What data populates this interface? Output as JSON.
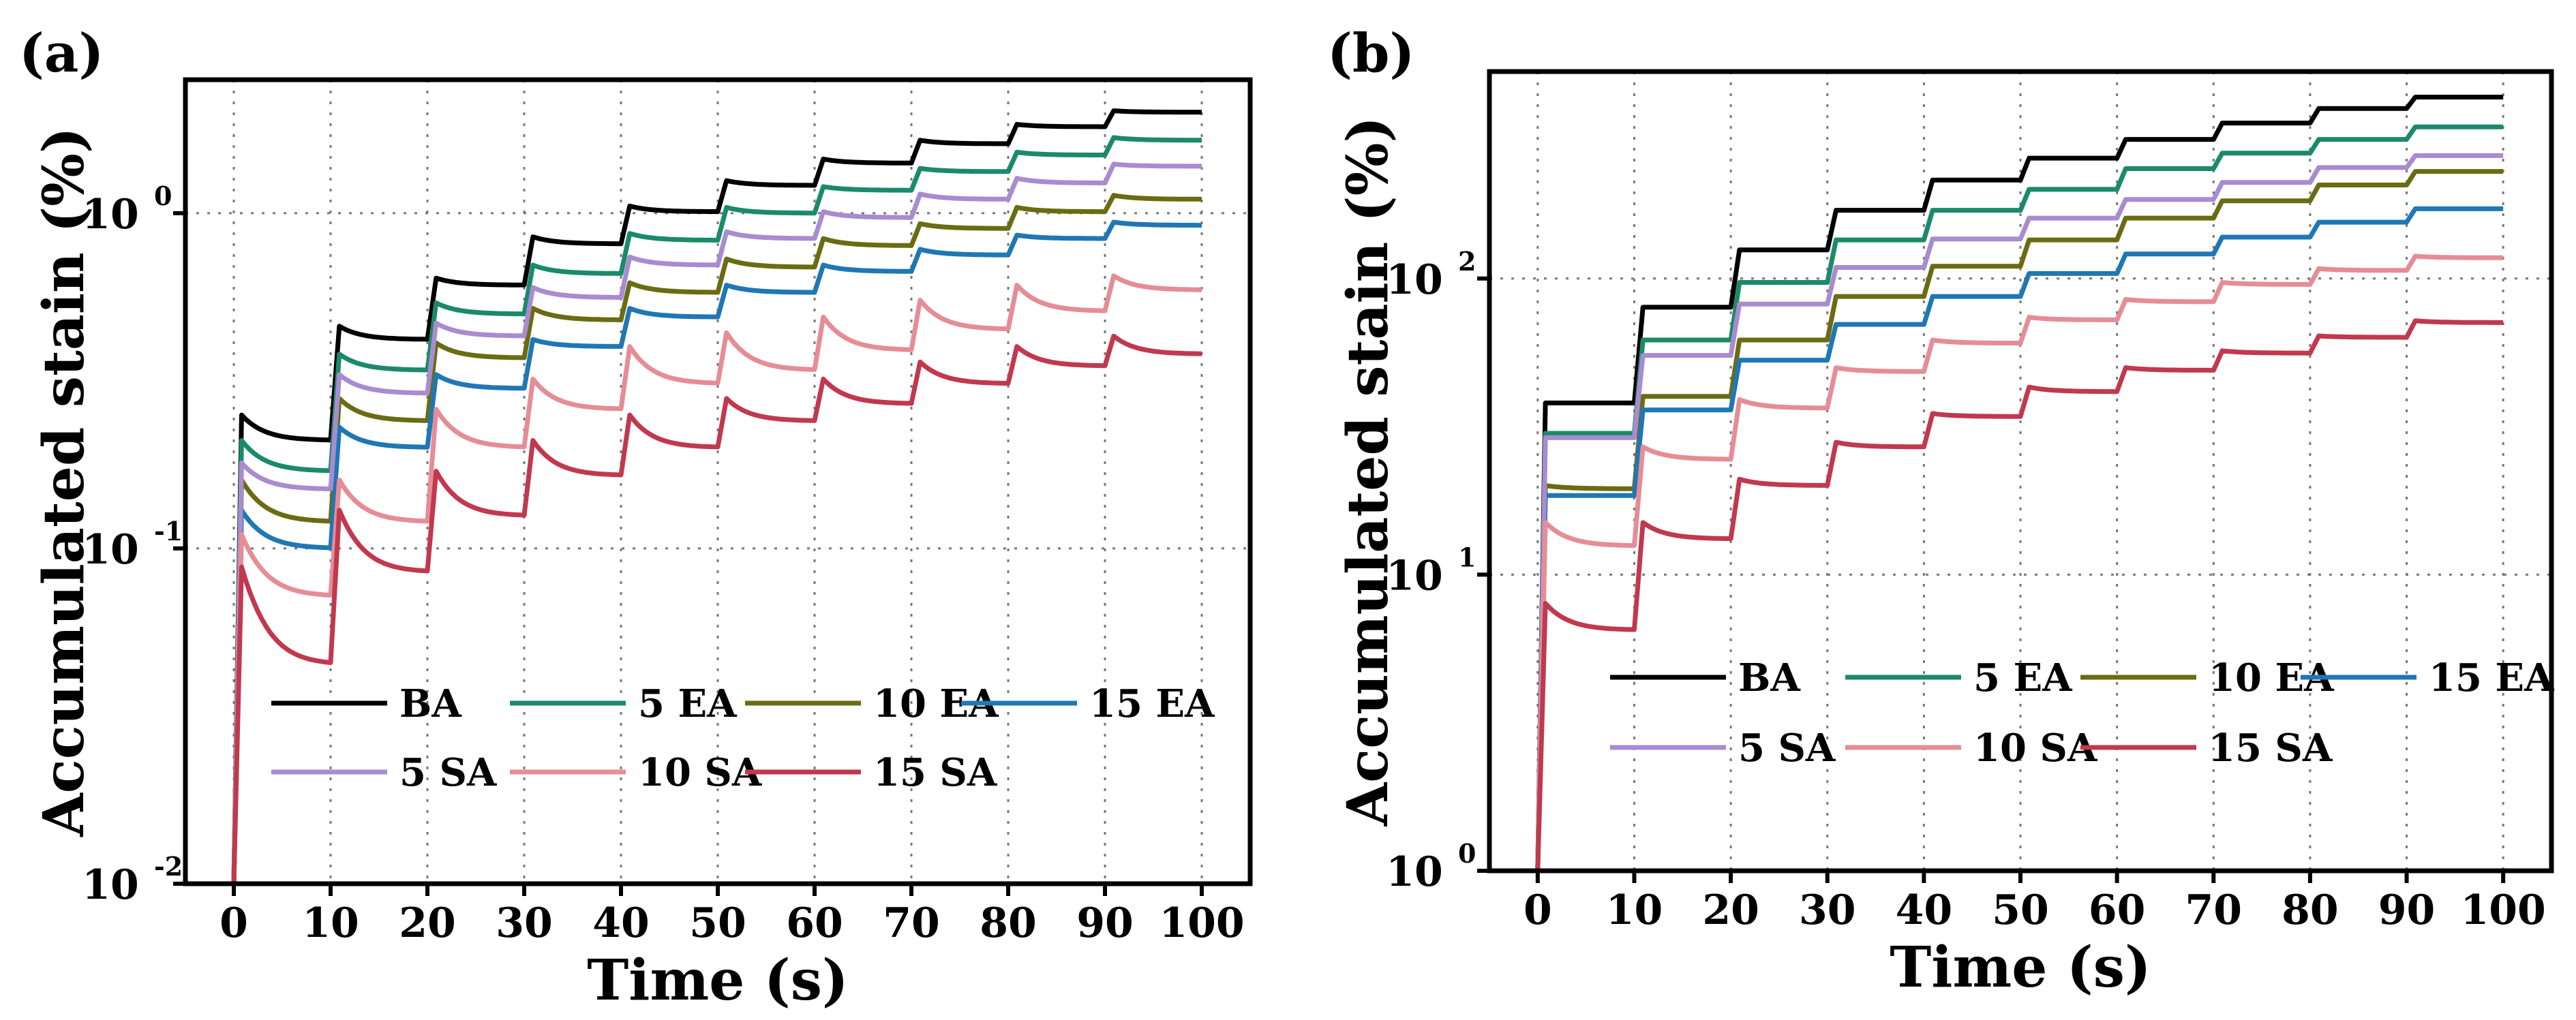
{
  "chart_data": [
    {
      "panel": "(a)",
      "type": "line",
      "xlabel": "Time (s)",
      "ylabel": "Accumulated stain (%)",
      "yscale": "log",
      "xlim": [
        -5,
        105
      ],
      "ylim": [
        0.01,
        2.5
      ],
      "xticks": [
        0,
        10,
        20,
        30,
        40,
        50,
        60,
        70,
        80,
        90,
        100
      ],
      "yticks": [
        {
          "base": "10",
          "exp": "-2",
          "value": 0.01
        },
        {
          "base": "10",
          "exp": "-1",
          "value": 0.1
        },
        {
          "base": "10",
          "exp": "0",
          "value": 1
        }
      ],
      "grid": true,
      "legend": {
        "position": "lower-middle",
        "rows": [
          [
            "BA",
            "5 EA",
            "10 EA",
            "15 EA"
          ],
          [
            "5 SA",
            "10 SA",
            "15 SA"
          ]
        ]
      },
      "series": [
        {
          "name": "BA",
          "color": "#000000",
          "start": [
            0.25,
            0.21
          ],
          "steps": [
            [
              0.46,
              0.42
            ],
            [
              0.64,
              0.61
            ],
            [
              0.85,
              0.81
            ],
            [
              1.05,
              1.01
            ],
            [
              1.25,
              1.21
            ],
            [
              1.45,
              1.41
            ],
            [
              1.65,
              1.61
            ],
            [
              1.84,
              1.81
            ],
            [
              2.02,
              2.0
            ]
          ]
        },
        {
          "name": "5 EA",
          "color": "#1b8a6b",
          "start": [
            0.21,
            0.17
          ],
          "steps": [
            [
              0.38,
              0.34
            ],
            [
              0.54,
              0.5
            ],
            [
              0.7,
              0.66
            ],
            [
              0.87,
              0.83
            ],
            [
              1.04,
              1.0
            ],
            [
              1.2,
              1.17
            ],
            [
              1.36,
              1.33
            ],
            [
              1.52,
              1.49
            ],
            [
              1.68,
              1.65
            ]
          ]
        },
        {
          "name": "10 EA",
          "color": "#6b6b12",
          "start": [
            0.16,
            0.12
          ],
          "steps": [
            [
              0.28,
              0.24
            ],
            [
              0.41,
              0.37
            ],
            [
              0.52,
              0.48
            ],
            [
              0.62,
              0.58
            ],
            [
              0.73,
              0.69
            ],
            [
              0.84,
              0.8
            ],
            [
              0.93,
              0.9
            ],
            [
              1.04,
              1.01
            ],
            [
              1.13,
              1.1
            ]
          ]
        },
        {
          "name": "15 EA",
          "color": "#1f77b4",
          "start": [
            0.13,
            0.1
          ],
          "steps": [
            [
              0.23,
              0.2
            ],
            [
              0.33,
              0.3
            ],
            [
              0.42,
              0.4
            ],
            [
              0.52,
              0.49
            ],
            [
              0.61,
              0.58
            ],
            [
              0.7,
              0.67
            ],
            [
              0.78,
              0.75
            ],
            [
              0.86,
              0.84
            ],
            [
              0.94,
              0.92
            ]
          ]
        },
        {
          "name": "5 SA",
          "color": "#a98bd0",
          "start": [
            0.18,
            0.15
          ],
          "steps": [
            [
              0.33,
              0.29
            ],
            [
              0.47,
              0.43
            ],
            [
              0.6,
              0.56
            ],
            [
              0.74,
              0.7
            ],
            [
              0.88,
              0.84
            ],
            [
              1.01,
              0.97
            ],
            [
              1.14,
              1.1
            ],
            [
              1.27,
              1.23
            ],
            [
              1.4,
              1.38
            ]
          ]
        },
        {
          "name": "10 SA",
          "color": "#e58d96",
          "start": [
            0.11,
            0.072
          ],
          "steps": [
            [
              0.16,
              0.12
            ],
            [
              0.26,
              0.2
            ],
            [
              0.32,
              0.26
            ],
            [
              0.4,
              0.31
            ],
            [
              0.44,
              0.34
            ],
            [
              0.49,
              0.39
            ],
            [
              0.55,
              0.45
            ],
            [
              0.61,
              0.51
            ],
            [
              0.65,
              0.59
            ]
          ]
        },
        {
          "name": "15 SA",
          "color": "#c0394f",
          "start": [
            0.088,
            0.045
          ],
          "steps": [
            [
              0.13,
              0.085
            ],
            [
              0.17,
              0.125
            ],
            [
              0.21,
              0.165
            ],
            [
              0.25,
              0.2
            ],
            [
              0.28,
              0.24
            ],
            [
              0.32,
              0.27
            ],
            [
              0.36,
              0.31
            ],
            [
              0.4,
              0.35
            ],
            [
              0.43,
              0.38
            ]
          ]
        }
      ]
    },
    {
      "panel": "(b)",
      "type": "line",
      "xlabel": "Time (s)",
      "ylabel": "Accumulated stain (%)",
      "yscale": "log",
      "xlim": [
        -5,
        105
      ],
      "ylim": [
        1,
        500
      ],
      "xticks": [
        0,
        10,
        20,
        30,
        40,
        50,
        60,
        70,
        80,
        90,
        100
      ],
      "yticks": [
        {
          "base": "10",
          "exp": "0",
          "value": 1
        },
        {
          "base": "10",
          "exp": "1",
          "value": 10
        },
        {
          "base": "10",
          "exp": "2",
          "value": 100
        }
      ],
      "grid": true,
      "legend": {
        "position": "lower-middle",
        "rows": [
          [
            "BA",
            "5 EA",
            "10 EA",
            "15 EA"
          ],
          [
            "5 SA",
            "10 SA",
            "15 SA"
          ]
        ]
      },
      "series": [
        {
          "name": "BA",
          "color": "#000000",
          "start": [
            38,
            38
          ],
          "steps": [
            [
              80,
              80
            ],
            [
              125,
              125
            ],
            [
              170,
              170
            ],
            [
              215,
              215
            ],
            [
              255,
              255
            ],
            [
              295,
              295
            ],
            [
              335,
              335
            ],
            [
              375,
              375
            ],
            [
              410,
              410
            ]
          ]
        },
        {
          "name": "5 EA",
          "color": "#1b8a6b",
          "start": [
            30,
            30
          ],
          "steps": [
            [
              62,
              62
            ],
            [
              97,
              97
            ],
            [
              135,
              135
            ],
            [
              170,
              170
            ],
            [
              200,
              200
            ],
            [
              235,
              235
            ],
            [
              265,
              265
            ],
            [
              295,
              295
            ],
            [
              325,
              325
            ]
          ]
        },
        {
          "name": "10 EA",
          "color": "#6b6b12",
          "start": [
            20,
            19.5
          ],
          "steps": [
            [
              40,
              40
            ],
            [
              62,
              62
            ],
            [
              87,
              87
            ],
            [
              110,
              110
            ],
            [
              135,
              135
            ],
            [
              160,
              160
            ],
            [
              183,
              183
            ],
            [
              207,
              207
            ],
            [
              230,
              230
            ]
          ]
        },
        {
          "name": "15 EA",
          "color": "#1f77b4",
          "start": [
            18.5,
            18.5
          ],
          "steps": [
            [
              36,
              36
            ],
            [
              53,
              53
            ],
            [
              70,
              70
            ],
            [
              87,
              87
            ],
            [
              104,
              104
            ],
            [
              121,
              121
            ],
            [
              138,
              138
            ],
            [
              155,
              155
            ],
            [
              172,
              172
            ]
          ]
        },
        {
          "name": "5 SA",
          "color": "#a98bd0",
          "start": [
            29,
            29
          ],
          "steps": [
            [
              55,
              55
            ],
            [
              82,
              82
            ],
            [
              109,
              109
            ],
            [
              136,
              136
            ],
            [
              160,
              160
            ],
            [
              185,
              185
            ],
            [
              211,
              211
            ],
            [
              237,
              237
            ],
            [
              260,
              260
            ]
          ]
        },
        {
          "name": "10 SA",
          "color": "#e58d96",
          "start": [
            15,
            12.5
          ],
          "steps": [
            [
              27,
              24.5
            ],
            [
              39,
              36.5
            ],
            [
              50,
              48.5
            ],
            [
              62,
              60.5
            ],
            [
              74,
              72.5
            ],
            [
              85,
              83.5
            ],
            [
              97,
              95.5
            ],
            [
              108,
              106.5
            ],
            [
              119,
              117.5
            ]
          ]
        },
        {
          "name": "15 SA",
          "color": "#c0394f",
          "start": [
            8,
            6.5
          ],
          "steps": [
            [
              15,
              13.2
            ],
            [
              21,
              20
            ],
            [
              28,
              27
            ],
            [
              35,
              34.2
            ],
            [
              43,
              41.5
            ],
            [
              50,
              49
            ],
            [
              57,
              56
            ],
            [
              64,
              63.3
            ],
            [
              72,
              71
            ]
          ]
        }
      ]
    }
  ]
}
